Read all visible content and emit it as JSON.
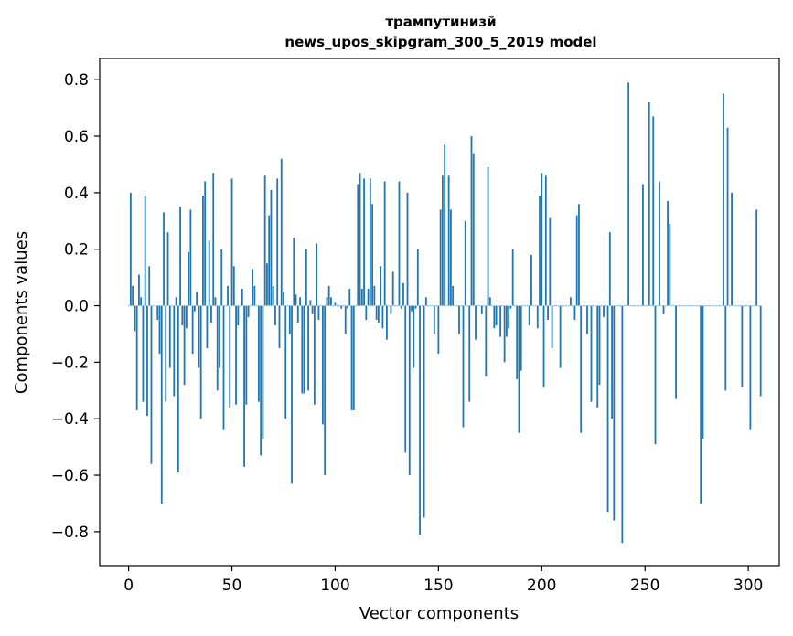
{
  "chart_data": {
    "type": "bar",
    "title": "трампутинизй",
    "subtitle": "news_upos_skipgram_300_5_2019 model",
    "xlabel": "Vector components",
    "ylabel": "Components values",
    "xlim": [
      -14,
      315
    ],
    "ylim": [
      -0.92,
      0.875
    ],
    "xticks": [
      0,
      50,
      100,
      150,
      200,
      250,
      300
    ],
    "xtick_labels": [
      "0",
      "50",
      "100",
      "150",
      "200",
      "250",
      "300"
    ],
    "yticks": [
      -0.8,
      -0.6,
      -0.4,
      -0.2,
      0.0,
      0.2,
      0.4,
      0.6,
      0.8
    ],
    "ytick_labels": [
      "−0.8",
      "−0.6",
      "−0.4",
      "−0.2",
      "0.0",
      "0.2",
      "0.4",
      "0.6",
      "0.8"
    ],
    "grid": false,
    "bar_color": "#1f77b4",
    "series": [
      {
        "values": [
          0.0,
          0.4,
          0.07,
          -0.09,
          -0.37,
          0.11,
          0.03,
          -0.34,
          0.39,
          -0.39,
          0.14,
          -0.56,
          0.0,
          0.0,
          -0.05,
          -0.17,
          -0.7,
          0.33,
          -0.34,
          0.26,
          -0.22,
          0.0,
          -0.32,
          0.03,
          -0.59,
          0.35,
          -0.07,
          -0.28,
          -0.08,
          0.19,
          0.34,
          -0.17,
          -0.02,
          0.05,
          -0.22,
          -0.4,
          0.39,
          0.44,
          -0.15,
          0.23,
          -0.06,
          0.47,
          0.03,
          -0.3,
          -0.22,
          0.2,
          -0.44,
          0.0,
          0.07,
          -0.36,
          0.45,
          0.14,
          -0.35,
          -0.07,
          0.0,
          0.06,
          -0.57,
          -0.35,
          -0.04,
          0.0,
          0.13,
          0.07,
          0.0,
          -0.34,
          -0.53,
          -0.47,
          0.46,
          0.15,
          0.32,
          0.41,
          0.07,
          -0.07,
          0.45,
          -0.15,
          0.52,
          0.05,
          -0.4,
          0.0,
          -0.1,
          -0.63,
          0.24,
          0.04,
          -0.06,
          0.03,
          -0.31,
          -0.31,
          0.2,
          -0.3,
          0.02,
          -0.03,
          -0.35,
          0.22,
          -0.05,
          0.0,
          -0.42,
          -0.6,
          0.03,
          0.07,
          0.03,
          0.0,
          0.01,
          0.0,
          0.0,
          -0.01,
          0.0,
          -0.1,
          -0.01,
          0.06,
          -0.37,
          -0.37,
          0.0,
          0.43,
          0.47,
          0.06,
          0.45,
          -0.05,
          0.06,
          0.45,
          0.36,
          0.07,
          -0.05,
          -0.06,
          0.14,
          -0.08,
          0.44,
          -0.12,
          0.0,
          -0.03,
          0.12,
          0.0,
          0.0,
          0.44,
          -0.01,
          0.08,
          -0.52,
          0.4,
          -0.6,
          -0.02,
          -0.22,
          -0.01,
          0.2,
          -0.81,
          0.0,
          -0.75,
          0.03,
          0.0,
          0.0,
          0.0,
          -0.1,
          0.0,
          -0.17,
          0.34,
          0.46,
          0.57,
          0.0,
          0.46,
          0.34,
          0.07,
          0.0,
          0.0,
          -0.1,
          0.0,
          -0.43,
          0.3,
          0.0,
          -0.34,
          0.6,
          0.54,
          -0.12,
          0.0,
          0.0,
          -0.03,
          0.0,
          -0.25,
          0.49,
          0.03,
          0.0,
          -0.08,
          -0.07,
          0.0,
          -0.11,
          0.0,
          -0.2,
          -0.11,
          -0.08,
          -0.01,
          0.2,
          0.0,
          -0.26,
          -0.45,
          -0.23,
          0.0,
          0.0,
          0.0,
          -0.07,
          0.18,
          0.0,
          0.0,
          -0.08,
          0.39,
          0.47,
          -0.29,
          0.46,
          -0.05,
          0.31,
          -0.15,
          0.0,
          0.0,
          0.0,
          -0.22,
          0.0,
          0.0,
          0.0,
          0.0,
          0.03,
          0.0,
          -0.05,
          0.32,
          0.36,
          -0.45,
          0.0,
          0.0,
          -0.1,
          0.0,
          -0.34,
          0.0,
          0.0,
          -0.36,
          -0.28,
          0.0,
          -0.04,
          0.0,
          -0.73,
          0.26,
          -0.4,
          -0.76,
          0.0,
          0.0,
          0.0,
          -0.84,
          0.0,
          0.0,
          0.79,
          0.0,
          0.0,
          0.0,
          0.0,
          0.0,
          0.0,
          0.43,
          0.0,
          0.0,
          0.72,
          0.0,
          0.67,
          -0.49,
          0.0,
          0.44,
          0.0,
          -0.03,
          0.0,
          0.37,
          0.29,
          0.0,
          0.0,
          -0.33,
          0.0,
          0.0,
          0.0,
          0.0,
          0.0,
          0.0,
          0.0,
          0.0,
          0.0,
          0.0,
          0.0,
          -0.7,
          -0.47,
          0.0,
          0.0,
          0.0,
          0.0,
          0.0,
          0.0,
          0.0,
          0.0,
          0.0,
          0.75,
          -0.3,
          0.63,
          0.0,
          0.4,
          0.0,
          0.0,
          0.0,
          0.0,
          -0.29,
          0.0,
          0.0,
          0.0,
          -0.44,
          0.0,
          0.0,
          0.34,
          0.0,
          -0.32
        ]
      }
    ]
  }
}
